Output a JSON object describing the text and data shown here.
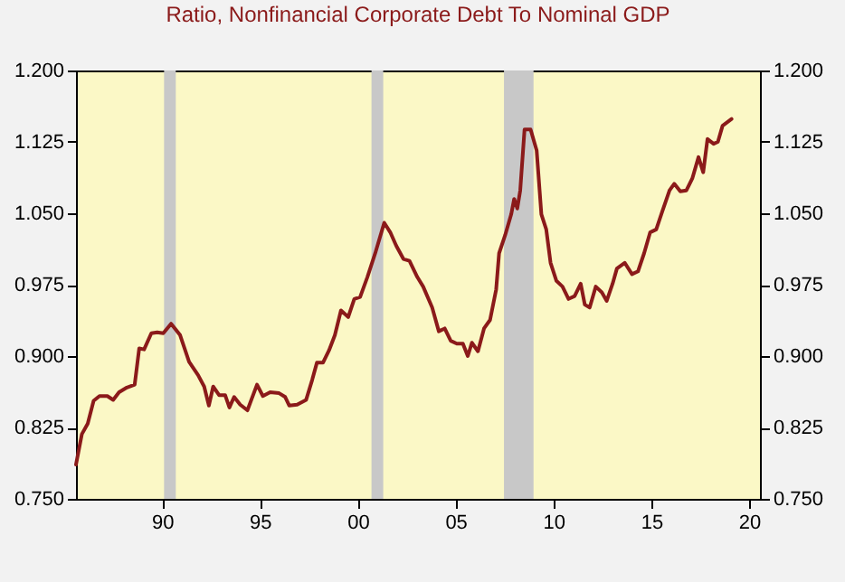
{
  "chart_data": {
    "type": "line",
    "title": "Ratio, Nonfinancial Corporate Debt To Nominal GDP",
    "x": [
      1985.6,
      1985.9,
      1986.2,
      1986.5,
      1986.8,
      1987.2,
      1987.5,
      1987.8,
      1988.2,
      1988.6,
      1988.83,
      1989.08,
      1989.45,
      1989.75,
      1990.06,
      1990.46,
      1990.92,
      1991.38,
      1991.84,
      1992.15,
      1992.39,
      1992.61,
      1992.91,
      1993.22,
      1993.44,
      1993.68,
      1993.99,
      1994.36,
      1994.85,
      1995.15,
      1995.52,
      1995.98,
      1996.29,
      1996.5,
      1996.9,
      1997.36,
      1997.67,
      1997.91,
      1998.22,
      1998.53,
      1998.83,
      1999.14,
      1999.51,
      1999.82,
      2000.12,
      2000.49,
      2000.89,
      2001.35,
      2001.66,
      2001.96,
      2002.33,
      2002.64,
      2003.04,
      2003.34,
      2003.8,
      2004.14,
      2004.44,
      2004.75,
      2005.06,
      2005.37,
      2005.62,
      2005.83,
      2006.14,
      2006.45,
      2006.76,
      2007.07,
      2007.22,
      2007.53,
      2007.84,
      2007.99,
      2008.15,
      2008.3,
      2008.52,
      2008.83,
      2009.14,
      2009.38,
      2009.63,
      2009.85,
      2010.15,
      2010.46,
      2010.77,
      2011.08,
      2011.39,
      2011.6,
      2011.85,
      2012.16,
      2012.47,
      2012.72,
      2013.02,
      2013.24,
      2013.64,
      2014.01,
      2014.32,
      2014.63,
      2014.94,
      2015.25,
      2015.56,
      2015.93,
      2016.17,
      2016.48,
      2016.79,
      2017.1,
      2017.41,
      2017.65,
      2017.87,
      2018.18,
      2018.4,
      2018.64,
      2019.1
    ],
    "series": [
      {
        "color": "#8b1a1a",
        "values": [
          0.786,
          0.818,
          0.829,
          0.853,
          0.858,
          0.858,
          0.854,
          0.862,
          0.867,
          0.87,
          0.908,
          0.907,
          0.924,
          0.925,
          0.924,
          0.934,
          0.922,
          0.894,
          0.88,
          0.868,
          0.848,
          0.868,
          0.859,
          0.859,
          0.846,
          0.857,
          0.849,
          0.843,
          0.87,
          0.858,
          0.862,
          0.861,
          0.857,
          0.848,
          0.849,
          0.854,
          0.875,
          0.893,
          0.893,
          0.906,
          0.922,
          0.948,
          0.941,
          0.96,
          0.962,
          0.983,
          1.008,
          1.04,
          1.03,
          1.016,
          1.002,
          1.0,
          0.983,
          0.973,
          0.951,
          0.926,
          0.929,
          0.916,
          0.913,
          0.913,
          0.9,
          0.914,
          0.905,
          0.929,
          0.938,
          0.97,
          1.008,
          1.027,
          1.049,
          1.065,
          1.055,
          1.074,
          1.138,
          1.138,
          1.116,
          1.049,
          1.033,
          0.998,
          0.979,
          0.973,
          0.96,
          0.963,
          0.976,
          0.954,
          0.951,
          0.973,
          0.967,
          0.958,
          0.976,
          0.992,
          0.998,
          0.986,
          0.989,
          1.008,
          1.03,
          1.033,
          1.052,
          1.074,
          1.081,
          1.073,
          1.074,
          1.087,
          1.109,
          1.093,
          1.128,
          1.123,
          1.125,
          1.142,
          1.149
        ]
      }
    ],
    "xlim": [
      1985.6,
      2020.55
    ],
    "xticks": [
      {
        "value": 1990,
        "label": "90"
      },
      {
        "value": 1995,
        "label": "95"
      },
      {
        "value": 2000,
        "label": "00"
      },
      {
        "value": 2005,
        "label": "05"
      },
      {
        "value": 2010,
        "label": "10"
      },
      {
        "value": 2015,
        "label": "15"
      },
      {
        "value": 2020,
        "label": "20"
      }
    ],
    "ylim": [
      0.75,
      1.2
    ],
    "yticks": [
      {
        "value": 0.75,
        "label": "0.750"
      },
      {
        "value": 0.825,
        "label": "0.825"
      },
      {
        "value": 0.9,
        "label": "0.900"
      },
      {
        "value": 0.975,
        "label": "0.975"
      },
      {
        "value": 1.05,
        "label": "1.050"
      },
      {
        "value": 1.125,
        "label": "1.125"
      },
      {
        "value": 1.2,
        "label": "1.200"
      }
    ],
    "y2lim": [
      0.75,
      1.2
    ],
    "y2ticks": [
      {
        "value": 0.75,
        "label": "0.750"
      },
      {
        "value": 0.825,
        "label": "0.825"
      },
      {
        "value": 0.9,
        "label": "0.900"
      },
      {
        "value": 0.975,
        "label": "0.975"
      },
      {
        "value": 1.05,
        "label": "1.050"
      },
      {
        "value": 1.125,
        "label": "1.125"
      },
      {
        "value": 1.2,
        "label": "1.200"
      }
    ],
    "bands": [
      {
        "axis": "x",
        "from": 1990.1,
        "to": 1990.7,
        "color": "#c8c8c8"
      },
      {
        "axis": "x",
        "from": 2000.7,
        "to": 2001.3,
        "color": "#c8c8c8"
      },
      {
        "axis": "x",
        "from": 2007.47,
        "to": 2008.98,
        "color": "#c8c8c8"
      }
    ],
    "grid": false
  }
}
